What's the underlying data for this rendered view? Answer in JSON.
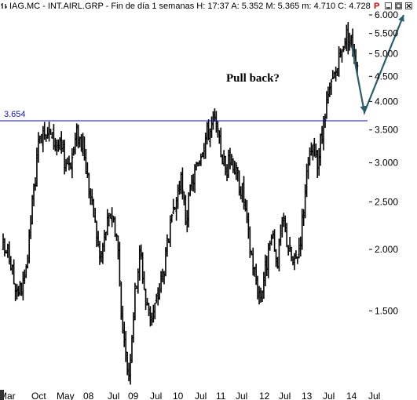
{
  "header": {
    "symbol": "IAG.MC",
    "name": "INT.AIRL.GRP",
    "period": "Fin de día 1 semanas",
    "time_label": "H:",
    "time": "17:37",
    "a_label": "A:",
    "a_value": "5.352",
    "m_label": "M:",
    "m_value": "5.365",
    "min_label": "m:",
    "min_value": "4.710",
    "c_label": "C:",
    "c_value": "4.728",
    "p_flag": "P",
    "icons": [
      "chart-symbol-icon",
      "minimize-icon",
      "maximize-icon",
      "close-icon"
    ]
  },
  "chart_data": {
    "type": "bar",
    "style": "weekly OHLC price bars",
    "y_scale": "log",
    "y_ticks": [
      "1.500",
      "2.000",
      "2.500",
      "3.000",
      "3.500",
      "4.000",
      "4.500",
      "5.000",
      "5.500",
      "6.000"
    ],
    "x_ticks": [
      "Mar",
      "Oct",
      "May",
      "08",
      "Jul",
      "09",
      "Jul",
      "10",
      "Jul",
      "11",
      "Jul",
      "12",
      "Jul",
      "13",
      "Jul",
      "14",
      "Jul"
    ],
    "ylim": [
      1.2,
      6.1
    ],
    "reference_line": {
      "label": "3.654",
      "value": 3.654,
      "color": "#1010c0"
    },
    "annotation": {
      "text": "Pull back?"
    },
    "projection": {
      "color": "#2b5e6e",
      "points": [
        5.2,
        3.8,
        6.0
      ]
    },
    "price_path": [
      2.0,
      1.95,
      1.7,
      1.65,
      1.75,
      2.4,
      3.1,
      3.6,
      3.45,
      3.3,
      3.2,
      3.0,
      3.05,
      3.5,
      3.2,
      2.7,
      2.3,
      1.9,
      2.2,
      2.4,
      2.1,
      1.3,
      1.12,
      1.6,
      2.0,
      1.55,
      1.45,
      1.6,
      1.8,
      2.1,
      2.4,
      2.8,
      2.3,
      2.7,
      3.0,
      3.3,
      3.5,
      3.65,
      3.2,
      2.9,
      3.1,
      2.8,
      2.6,
      2.1,
      1.8,
      1.6,
      1.85,
      2.1,
      1.9,
      2.3,
      2.0,
      1.85,
      2.1,
      2.7,
      3.2,
      3.0,
      3.5,
      4.1,
      4.5,
      4.9,
      5.5,
      5.3,
      4.8
    ]
  }
}
